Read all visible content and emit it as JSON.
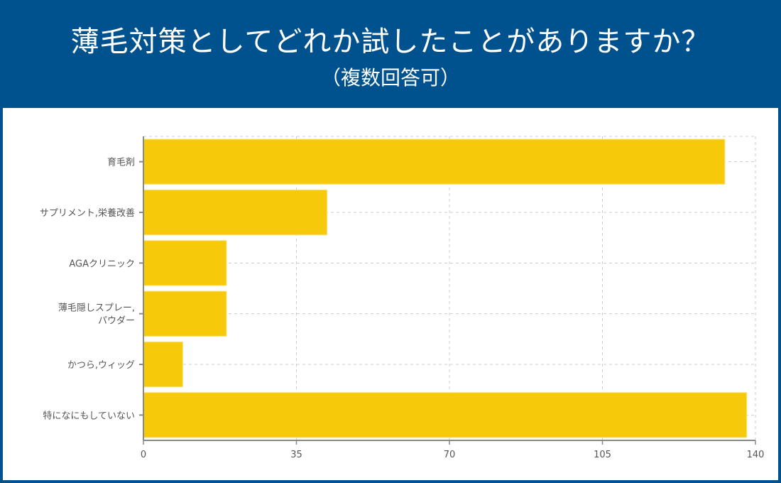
{
  "header": {
    "title": "薄毛対策としてどれか試したことがありますか？",
    "subtitle": "（複数回答可）"
  },
  "chart_data": {
    "type": "bar",
    "orientation": "horizontal",
    "title": "薄毛対策としてどれか試したことがありますか？",
    "subtitle": "（複数回答可）",
    "categories": [
      "育毛剤",
      "サプリメント,栄養改善",
      "AGAクリニック",
      "薄毛隠しスプレー,\nパウダー",
      "かつら,ウィッグ",
      "特になにもしていない"
    ],
    "values": [
      133,
      42,
      19,
      19,
      9,
      138
    ],
    "xlim": [
      0,
      140
    ],
    "xticks": [
      0,
      35,
      70,
      105,
      140
    ],
    "grid": true,
    "bar_color": "#f6ca0b",
    "header_color": "#00528f"
  }
}
